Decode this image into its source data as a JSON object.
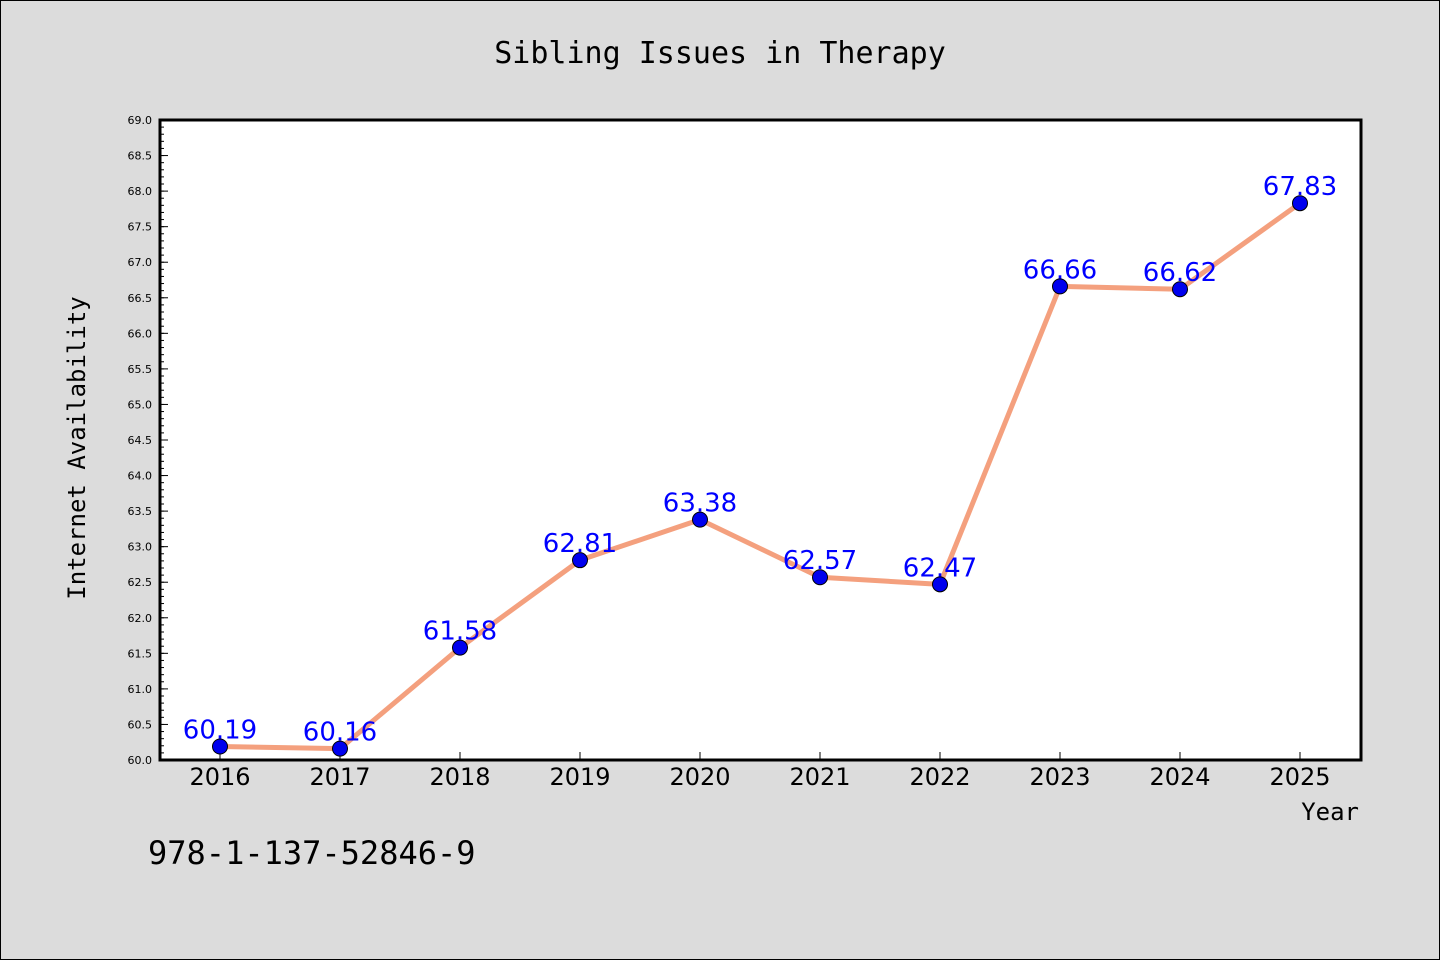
{
  "chart_data": {
    "type": "line",
    "title": "Sibling Issues in Therapy",
    "xlabel": "Year",
    "ylabel": "Internet Availability",
    "categories": [
      "2016",
      "2017",
      "2018",
      "2019",
      "2020",
      "2021",
      "2022",
      "2023",
      "2024",
      "2025"
    ],
    "series": [
      {
        "values": [
          60.19,
          60.16,
          61.58,
          62.81,
          63.38,
          62.57,
          62.47,
          66.66,
          66.62,
          67.83
        ]
      }
    ],
    "data_labels": [
      "60.19",
      "60.16",
      "61.58",
      "62.81",
      "63.38",
      "62.57",
      "62.47",
      "66.66",
      "66.62",
      "67.83"
    ],
    "ylim": [
      60.0,
      69.0
    ],
    "yticks": [
      "60.0",
      "60.5",
      "61.0",
      "61.5",
      "62.0",
      "62.5",
      "63.0",
      "63.5",
      "64.0",
      "64.5",
      "65.0",
      "65.5",
      "66.0",
      "66.5",
      "67.0",
      "67.5",
      "68.0",
      "68.5",
      "69.0"
    ],
    "grid": false,
    "colors": {
      "line": "#f4a07e",
      "marker": "#0000ee",
      "label": "#0000ff",
      "background": "#dcdcdc",
      "plot_bg": "#ffffff"
    }
  },
  "footer": {
    "isbn": "978-1-137-52846-9"
  }
}
